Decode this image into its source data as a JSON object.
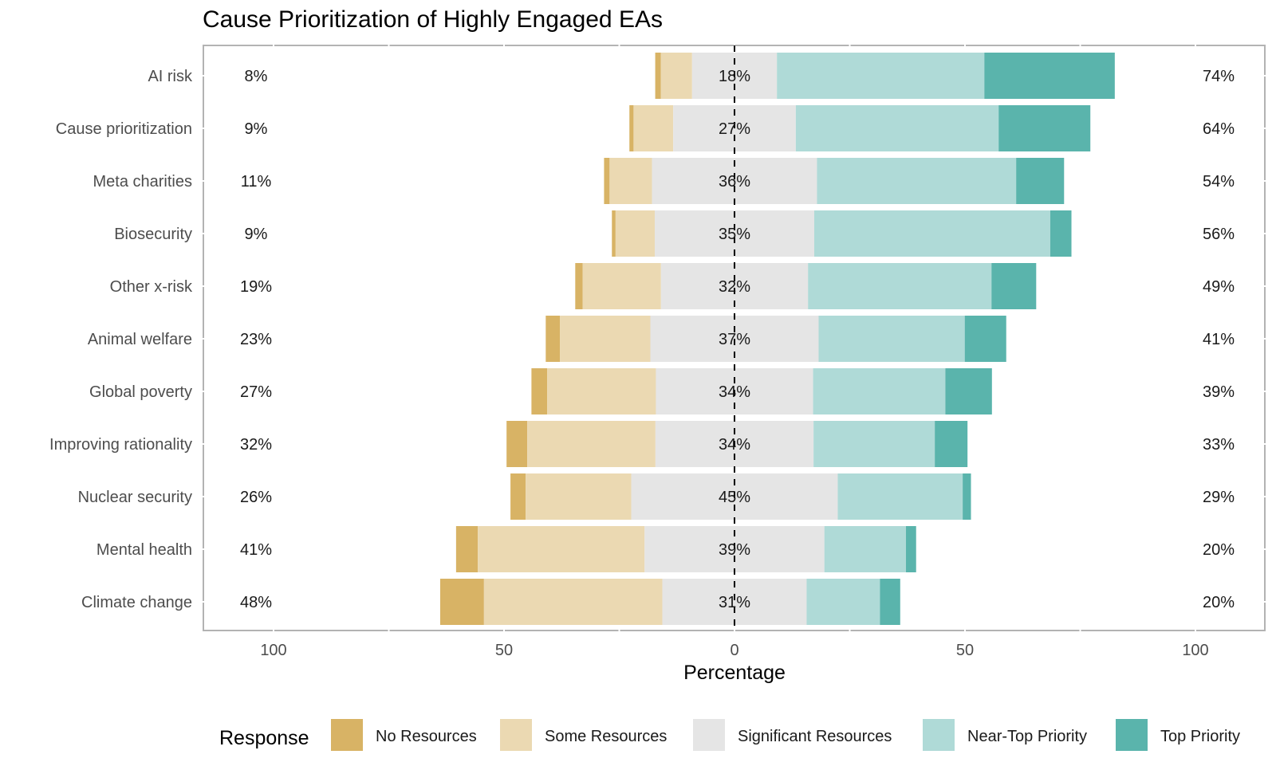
{
  "chart_data": {
    "type": "bar",
    "subtype": "diverging-stacked-horizontal",
    "title": "Cause Prioritization of Highly Engaged EAs",
    "xlabel": "Percentage",
    "ylabel": "",
    "xlim": [
      -100,
      100
    ],
    "xticks": [
      -100,
      -50,
      0,
      50,
      100
    ],
    "xtick_labels": [
      "100",
      "50",
      "0",
      "50",
      "100"
    ],
    "grid": true,
    "legend": {
      "title": "Response",
      "placement": "bottom"
    },
    "series": [
      {
        "name": "No Resources",
        "color": "#d8b365"
      },
      {
        "name": "Some Resources",
        "color": "#ebd9b2"
      },
      {
        "name": "Significant Resources",
        "color": "#e5e5e5"
      },
      {
        "name": "Near-Top Priority",
        "color": "#afdad7"
      },
      {
        "name": "Top Priority",
        "color": "#5ab4ac"
      }
    ],
    "categories": [
      "AI risk",
      "Cause prioritization",
      "Meta charities",
      "Biosecurity",
      "Other x-risk",
      "Animal welfare",
      "Global poverty",
      "Improving rationality",
      "Nuclear security",
      "Mental health",
      "Climate change"
    ],
    "values": [
      [
        1.2,
        6.8,
        18.4,
        45.0,
        28.3
      ],
      [
        0.9,
        8.6,
        26.6,
        44.0,
        19.9
      ],
      [
        1.2,
        9.2,
        35.8,
        43.2,
        10.4
      ],
      [
        0.8,
        8.5,
        34.6,
        51.2,
        4.6
      ],
      [
        1.6,
        17.0,
        31.9,
        39.8,
        9.7
      ],
      [
        3.1,
        19.6,
        36.5,
        31.7,
        9.0
      ],
      [
        3.4,
        23.6,
        34.1,
        28.7,
        10.1
      ],
      [
        4.5,
        27.8,
        34.3,
        26.3,
        7.1
      ],
      [
        3.3,
        22.9,
        44.8,
        27.1,
        1.8
      ],
      [
        4.7,
        36.2,
        39.0,
        17.7,
        2.2
      ],
      [
        9.5,
        38.7,
        31.3,
        15.9,
        4.4
      ]
    ],
    "left_labels": [
      "8%",
      "9%",
      "11%",
      "9%",
      "19%",
      "23%",
      "27%",
      "32%",
      "26%",
      "41%",
      "48%"
    ],
    "center_labels": [
      "18%",
      "27%",
      "36%",
      "35%",
      "32%",
      "37%",
      "34%",
      "34%",
      "45%",
      "39%",
      "31%"
    ],
    "right_labels": [
      "74%",
      "64%",
      "54%",
      "56%",
      "49%",
      "41%",
      "39%",
      "33%",
      "29%",
      "20%",
      "20%"
    ]
  }
}
